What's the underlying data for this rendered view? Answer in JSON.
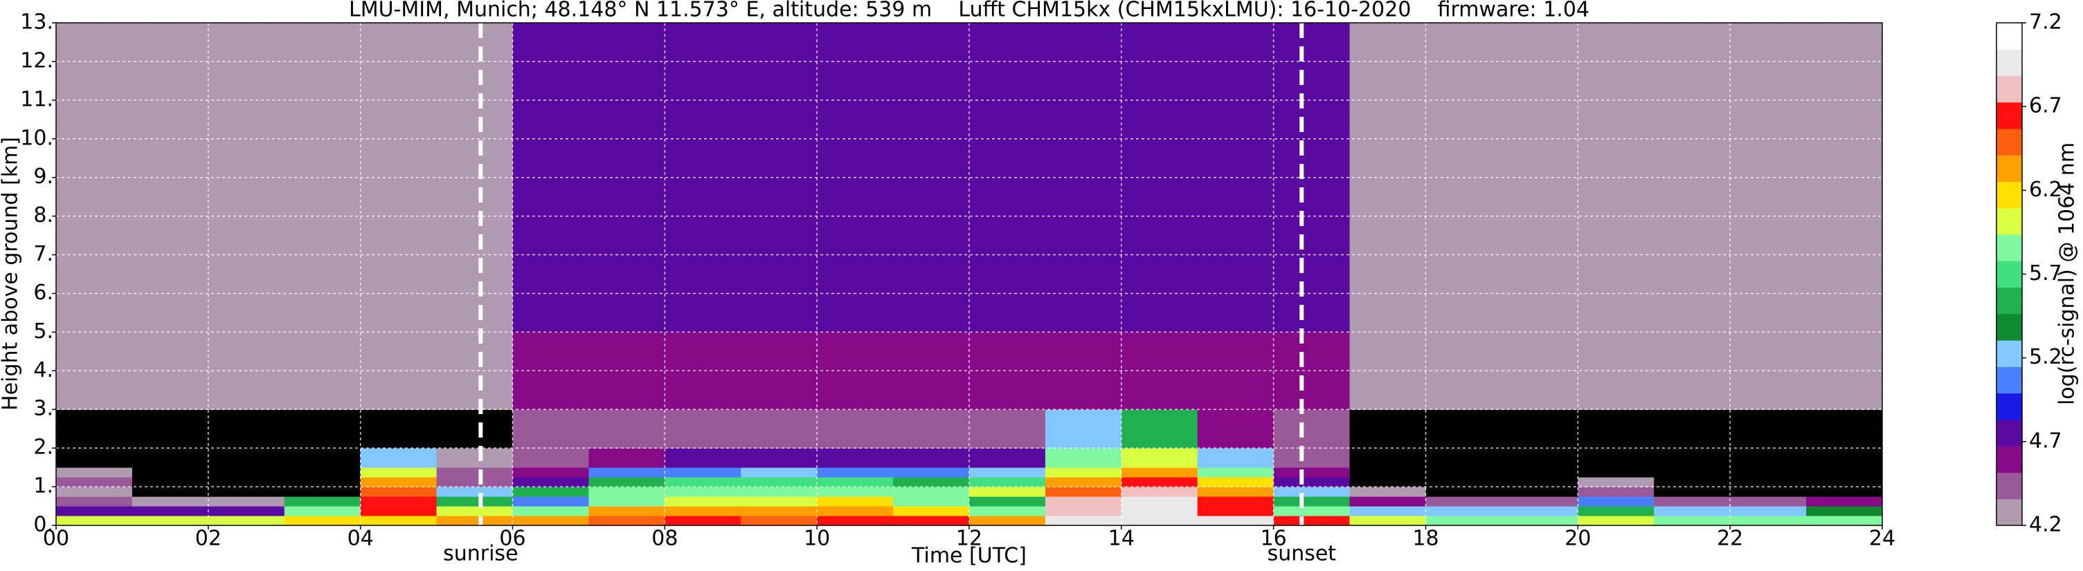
{
  "chart_data": {
    "type": "heatmap",
    "title": "LMU-MIM, Munich; 48.148° N 11.573° E, altitude: 539 m    Lufft CHM15kx (CHM15kxLMU): 16-10-2020    firmware: 1.04",
    "x_label": "Time [UTC]",
    "y_label": "Height above ground [km]",
    "colorbar_label": "log(rc-signal) @ 1064 nm",
    "xlim": [
      0,
      24
    ],
    "ylim": [
      0,
      13
    ],
    "xticks": [
      {
        "value": 0,
        "label": "00"
      },
      {
        "value": 2,
        "label": "02"
      },
      {
        "value": 4,
        "label": "04"
      },
      {
        "value": 6,
        "label": "06"
      },
      {
        "value": 8,
        "label": "08"
      },
      10,
      12,
      14,
      16,
      18,
      20,
      22,
      24
    ],
    "yticks": [
      {
        "value": 0,
        "label": "0."
      },
      {
        "value": 1,
        "label": "1."
      },
      {
        "value": 2,
        "label": "2."
      },
      {
        "value": 3,
        "label": "3."
      },
      {
        "value": 4,
        "label": "4."
      },
      {
        "value": 5,
        "label": "5."
      },
      {
        "value": 6,
        "label": "6."
      },
      {
        "value": 7,
        "label": "7."
      },
      {
        "value": 8,
        "label": "8."
      },
      {
        "value": 9,
        "label": "9."
      },
      {
        "value": 10,
        "label": "10."
      },
      {
        "value": 11,
        "label": "11."
      },
      {
        "value": 12,
        "label": "12."
      },
      {
        "value": 13,
        "label": "13."
      }
    ],
    "grid": true,
    "x_edges": [
      0,
      1,
      2,
      3,
      4,
      5,
      6,
      7,
      8,
      9,
      10,
      11,
      12,
      13,
      14,
      15,
      16,
      17,
      18,
      19,
      20,
      21,
      22,
      23,
      24
    ],
    "y_edges": [
      0,
      0.25,
      0.5,
      0.75,
      1,
      1.25,
      1.5,
      2,
      3,
      5,
      8,
      13
    ],
    "z": [
      [
        6.0,
        6.0,
        6.0,
        6.1,
        6.2,
        6.3,
        6.4,
        6.5,
        6.6,
        6.5,
        6.6,
        6.6,
        6.4,
        6.9,
        7.0,
        6.9,
        6.6,
        6.0,
        5.9,
        5.9,
        6.0,
        5.9,
        5.9,
        5.9
      ],
      [
        4.8,
        4.7,
        4.8,
        5.8,
        6.6,
        6.0,
        5.8,
        6.3,
        6.4,
        6.3,
        6.3,
        6.2,
        5.8,
        6.8,
        6.9,
        6.7,
        5.9,
        5.3,
        5.2,
        5.3,
        5.6,
        5.3,
        5.2,
        5.4
      ],
      [
        4.4,
        4.2,
        4.2,
        5.6,
        6.6,
        5.6,
        5.1,
        5.9,
        6.0,
        6.0,
        6.1,
        5.9,
        5.6,
        6.8,
        6.9,
        6.6,
        5.5,
        4.6,
        4.5,
        4.4,
        5.0,
        4.5,
        4.4,
        4.6
      ],
      [
        4.3,
        4.0,
        4.0,
        4.0,
        6.5,
        5.3,
        5.5,
        5.8,
        5.8,
        5.9,
        5.9,
        5.8,
        6.0,
        6.5,
        6.8,
        6.4,
        5.2,
        4.2,
        4.0,
        4.0,
        4.4,
        4.0,
        4.0,
        4.0
      ],
      [
        4.4,
        4.0,
        4.0,
        4.0,
        6.3,
        4.5,
        4.8,
        5.6,
        5.7,
        5.7,
        5.7,
        5.6,
        5.7,
        6.3,
        6.6,
        6.2,
        4.8,
        4.0,
        4.0,
        4.0,
        4.2,
        4.0,
        4.0,
        4.0
      ],
      [
        4.3,
        4.0,
        4.0,
        4.0,
        6.0,
        4.4,
        4.6,
        5.0,
        5.1,
        5.2,
        5.1,
        5.1,
        5.2,
        6.0,
        6.3,
        5.9,
        4.6,
        4.0,
        4.0,
        4.0,
        4.0,
        4.0,
        4.0,
        4.0
      ],
      [
        4.0,
        4.0,
        4.0,
        4.0,
        5.2,
        4.3,
        4.5,
        4.6,
        4.7,
        4.7,
        4.7,
        4.7,
        4.7,
        5.8,
        6.0,
        5.2,
        4.5,
        4.0,
        4.0,
        4.0,
        4.0,
        4.0,
        4.0,
        4.0
      ],
      [
        4.0,
        4.0,
        4.0,
        4.0,
        4.0,
        4.0,
        4.5,
        4.5,
        4.5,
        4.5,
        4.5,
        4.5,
        4.5,
        5.3,
        5.5,
        4.6,
        4.5,
        4.0,
        4.0,
        4.0,
        4.0,
        4.0,
        4.0,
        4.0
      ],
      [
        4.2,
        4.2,
        4.2,
        4.2,
        4.2,
        4.2,
        4.6,
        4.6,
        4.6,
        4.6,
        4.6,
        4.6,
        4.6,
        4.6,
        4.6,
        4.6,
        4.6,
        4.2,
        4.2,
        4.2,
        4.2,
        4.2,
        4.2,
        4.2
      ],
      [
        4.3,
        4.3,
        4.3,
        4.3,
        4.3,
        4.3,
        4.7,
        4.7,
        4.7,
        4.7,
        4.7,
        4.7,
        4.7,
        4.7,
        4.7,
        4.7,
        4.7,
        4.3,
        4.3,
        4.3,
        4.3,
        4.3,
        4.3,
        4.3
      ],
      [
        4.3,
        4.3,
        4.3,
        4.3,
        4.3,
        4.3,
        4.8,
        4.8,
        4.8,
        4.8,
        4.8,
        4.8,
        4.8,
        4.8,
        4.8,
        4.8,
        4.8,
        4.3,
        4.3,
        4.3,
        4.3,
        4.3,
        4.3,
        4.3
      ]
    ],
    "clim": [
      4.2,
      7.2
    ],
    "cticks": [
      4.2,
      4.7,
      5.2,
      5.7,
      6.2,
      6.7,
      7.2
    ],
    "colormap": {
      "under": "#000000",
      "colors": [
        "#b09ab0",
        "#9a5a9a",
        "#880a88",
        "#5a0aa0",
        "#1a1ae8",
        "#4a80ff",
        "#80c8ff",
        "#108a30",
        "#20b050",
        "#40e080",
        "#80f8a0",
        "#d8ff40",
        "#ffe000",
        "#ffa000",
        "#ff6010",
        "#ff1010",
        "#f0c0c0",
        "#e8e8e8",
        "#ffffff"
      ]
    },
    "vlines": [
      {
        "x": 5.58,
        "label": "sunrise"
      },
      {
        "x": 16.37,
        "label": "sunset"
      }
    ]
  }
}
